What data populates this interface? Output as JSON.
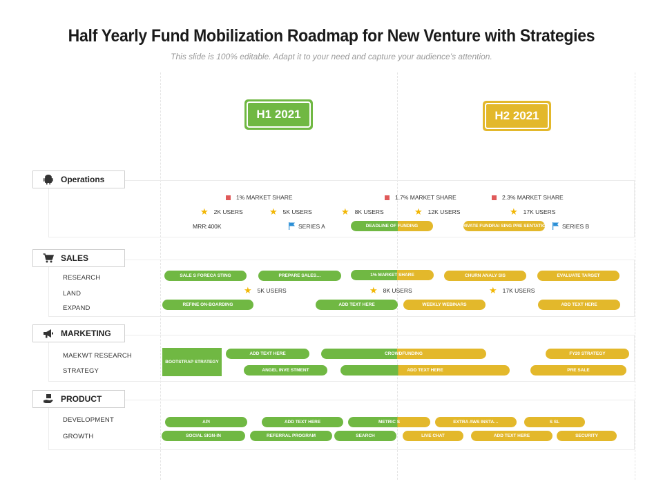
{
  "title": "Half Yearly Fund Mobilization Roadmap for New Venture with Strategies",
  "subtitle": "This slide is 100% editable. Adapt it to your need and capture your audience’s attention.",
  "halves": {
    "h1": {
      "label": "H1 2021",
      "color": "#70b843"
    },
    "h2": {
      "label": "H2 2021",
      "color": "#e3b82b"
    }
  },
  "colors": {
    "green": "#70b843",
    "yellow": "#e3b82b",
    "marker": "#e05a5a",
    "star": "#f2b705",
    "flag": "#2b8fd6"
  },
  "operations": {
    "label": "Operations",
    "icon": "android-icon",
    "market_shares": [
      "1% MARKET SHARE",
      "1.7% MARKET SHARE",
      "2.3% MARKET SHARE"
    ],
    "users": [
      "2K USERS",
      "5K USERS",
      "8K USERS",
      "12K USERS",
      "17K USERS"
    ],
    "mrr": "MRR:400K",
    "series_a": "SERIES A",
    "deadline": "DEADLINE OF FUNDING",
    "private": "PRIVATE FUNDRAI SING PRE SENTATION",
    "series_b": "SERIES B"
  },
  "sales": {
    "label": "SALES",
    "icon": "cart-icon",
    "rows": [
      "RESEARCH",
      "LAND",
      "EXPAND"
    ],
    "research": [
      "SALE S FORECA STING",
      "PREPARE SALES…",
      "1% MARKET SHARE",
      "CHURN ANALY SIS",
      "EVALUATE TARGET"
    ],
    "land_users": [
      "5K USERS",
      "8K USERS",
      "17K USERS"
    ],
    "expand": [
      "REFINE ON-BOARDING",
      "ADD TEXT HERE",
      "WEEKLY WEBINARS",
      "ADD TEXT HERE"
    ]
  },
  "marketing": {
    "label": "MARKETING",
    "icon": "megaphone-icon",
    "rows": [
      "MAEKWT RESEARCH",
      "STRATEGY"
    ],
    "bootstrap": "BOOTSTRAP STRATEGY",
    "research": [
      "ADD TEXT HERE",
      "CROWDFUNDING",
      "FY20 STRATEGY"
    ],
    "strategy": [
      "ANGEL INVE STMENT",
      "ADD TEXT HERE",
      "PRE SALE"
    ]
  },
  "product": {
    "label": "PRODUCT",
    "icon": "hand-box-icon",
    "rows": [
      "DEVELOPMENT",
      "GROWTH"
    ],
    "development": [
      "API",
      "ADD TEXT HERE",
      "METRIC S",
      "EXTRA AWS INSTA…",
      "S SL"
    ],
    "growth": [
      "SOCIAL SIGN-IN",
      "REFERRAL PROGRAM",
      "SEARCH",
      "LIVE CHAT",
      "ADD TEXT HERE",
      "SECURITY"
    ]
  }
}
